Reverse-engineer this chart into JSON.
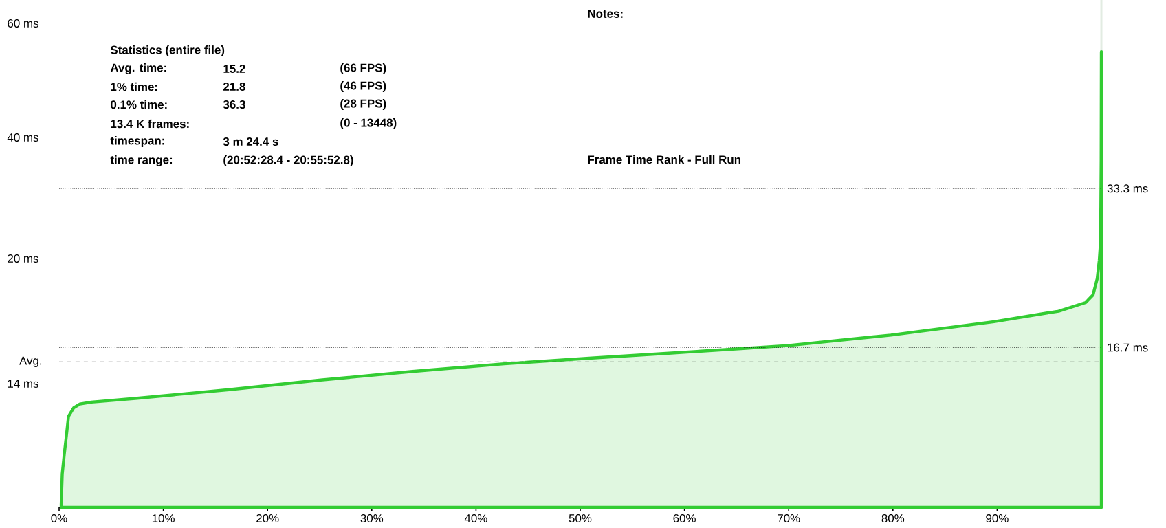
{
  "chart_data": {
    "type": "area",
    "x": [
      0.2,
      0.3,
      0.5,
      0.7,
      0.9,
      1.4,
      2.0,
      3.1,
      7.5,
      16.3,
      25.1,
      33.9,
      42.7,
      51.1,
      58.5,
      69.9,
      79.8,
      89.7,
      95.9,
      98.5,
      99.2,
      99.6,
      99.8,
      99.9,
      99.95,
      99.98,
      100
    ],
    "series": [
      {
        "color": "#33cc33",
        "values": [
          0.3,
          3.5,
          5.6,
          7.5,
          9.5,
          10.4,
          10.8,
          11.0,
          11.4,
          12.3,
          13.3,
          14.2,
          15.0,
          15.6,
          16.1,
          16.9,
          18.0,
          19.4,
          20.5,
          21.4,
          22.2,
          23.9,
          25.8,
          27.4,
          31.4,
          36.3,
          47.6
        ]
      }
    ],
    "xlim": [
      0,
      100
    ],
    "xticks": [
      {
        "value": 0,
        "label": "0%"
      },
      {
        "value": 10,
        "label": "10%"
      },
      {
        "value": 20,
        "label": "20%"
      },
      {
        "value": 30,
        "label": "30%"
      },
      {
        "value": 40,
        "label": "40%"
      },
      {
        "value": 50,
        "label": "50%"
      },
      {
        "value": 60,
        "label": "60%"
      },
      {
        "value": 70,
        "label": "70%"
      },
      {
        "value": 80,
        "label": "80%"
      },
      {
        "value": 90,
        "label": "90%"
      }
    ],
    "ylim": [
      0,
      53
    ],
    "yticks": [
      {
        "value": 16.7,
        "label": "16.7 ms"
      },
      {
        "value": 33.3,
        "label": "33.3 ms"
      }
    ],
    "ref_lines": [
      {
        "axis": "y",
        "value": 33.3,
        "line_style": "dotted",
        "color": "#000000"
      },
      {
        "axis": "y",
        "value": 16.7,
        "line_style": "dotted",
        "color": "#000000"
      },
      {
        "axis": "y",
        "value": 15.2,
        "line_style": "dashed",
        "color": "#000000",
        "label": "Avg."
      }
    ],
    "annotations": [
      "Statistics (entire file)",
      "Avg. time:",
      "15.2",
      "(66 FPS)",
      "1% time:",
      "21.8",
      "(46 FPS)",
      "0.1% time:",
      "36.3",
      "(28 FPS)",
      "13.4 K frames:",
      "(0 - 13448)",
      "timespan:",
      "3 m 24.4 s",
      "time range:",
      "(20:52:28.4 - 20:55:52.8)",
      "Notes:",
      "Frame Time Rank - Full Run",
      "60 ms",
      "40 ms",
      "20 ms",
      "14 ms"
    ]
  }
}
